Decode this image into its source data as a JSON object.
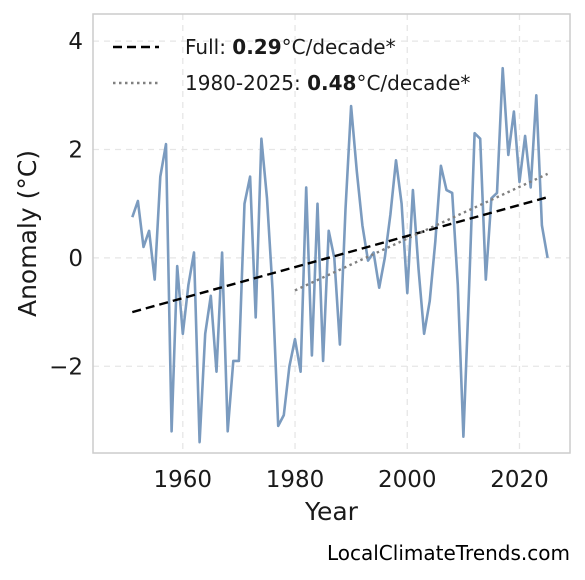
{
  "chart_data": {
    "type": "line",
    "xlabel": "Year",
    "ylabel": "Anomaly (°C)",
    "xlim": [
      1944,
      2029
    ],
    "ylim": [
      -3.6,
      4.5
    ],
    "xticks": [
      1960,
      1980,
      2000,
      2020
    ],
    "yticks": [
      -2,
      0,
      2,
      4
    ],
    "ytick_labels": [
      "−2",
      "0",
      "2",
      "4"
    ],
    "grid": true,
    "legend_position": "top-left",
    "series": [
      {
        "color": "#7b9bbf",
        "style": "solid",
        "x": [
          1951,
          1952,
          1953,
          1954,
          1955,
          1956,
          1957,
          1958,
          1959,
          1960,
          1961,
          1962,
          1963,
          1964,
          1965,
          1966,
          1967,
          1968,
          1969,
          1970,
          1971,
          1972,
          1973,
          1974,
          1975,
          1976,
          1977,
          1978,
          1979,
          1980,
          1981,
          1982,
          1983,
          1984,
          1985,
          1986,
          1987,
          1988,
          1989,
          1990,
          1991,
          1992,
          1993,
          1994,
          1995,
          1996,
          1997,
          1998,
          1999,
          2000,
          2001,
          2002,
          2003,
          2004,
          2005,
          2006,
          2007,
          2008,
          2009,
          2010,
          2011,
          2012,
          2013,
          2014,
          2015,
          2016,
          2017,
          2018,
          2019,
          2020,
          2021,
          2022,
          2023,
          2024,
          2025
        ],
        "values": [
          0.75,
          1.05,
          0.2,
          0.5,
          -0.4,
          1.5,
          2.1,
          -3.2,
          -0.15,
          -1.4,
          -0.5,
          0.1,
          -3.4,
          -1.4,
          -0.7,
          -2.1,
          0.1,
          -3.2,
          -1.9,
          -1.9,
          1.0,
          1.5,
          -1.1,
          2.2,
          1.1,
          -0.6,
          -3.1,
          -2.9,
          -2.0,
          -1.5,
          -2.1,
          1.3,
          -1.8,
          1.0,
          -1.9,
          0.5,
          0.0,
          -1.6,
          0.9,
          2.8,
          1.6,
          0.6,
          -0.05,
          0.1,
          -0.55,
          0.0,
          0.8,
          1.8,
          1.0,
          -0.65,
          1.25,
          -0.2,
          -1.4,
          -0.8,
          0.3,
          1.7,
          1.25,
          1.2,
          -0.5,
          -3.3,
          -0.6,
          2.3,
          2.2,
          -0.4,
          1.1,
          1.2,
          3.5,
          1.9,
          2.7,
          1.4,
          2.25,
          1.3,
          3.0,
          0.6,
          0.0
        ]
      },
      {
        "name": "Full",
        "color": "#000000",
        "style": "dashed",
        "x": [
          1951,
          2025
        ],
        "values": [
          -1.0,
          1.12
        ]
      },
      {
        "name": "1980-2025",
        "color": "#808080",
        "style": "dotted",
        "x": [
          1980,
          2025
        ],
        "values": [
          -0.6,
          1.55
        ]
      }
    ],
    "legend": [
      {
        "prefix": "Full: ",
        "value": "0.29",
        "suffix": "°C/decade*",
        "style": "dashed",
        "color": "#000000"
      },
      {
        "prefix": "1980-2025: ",
        "value": "0.48",
        "suffix": "°C/decade*",
        "style": "dotted",
        "color": "#808080"
      }
    ]
  },
  "footer": {
    "credit": "LocalClimateTrends.com"
  }
}
